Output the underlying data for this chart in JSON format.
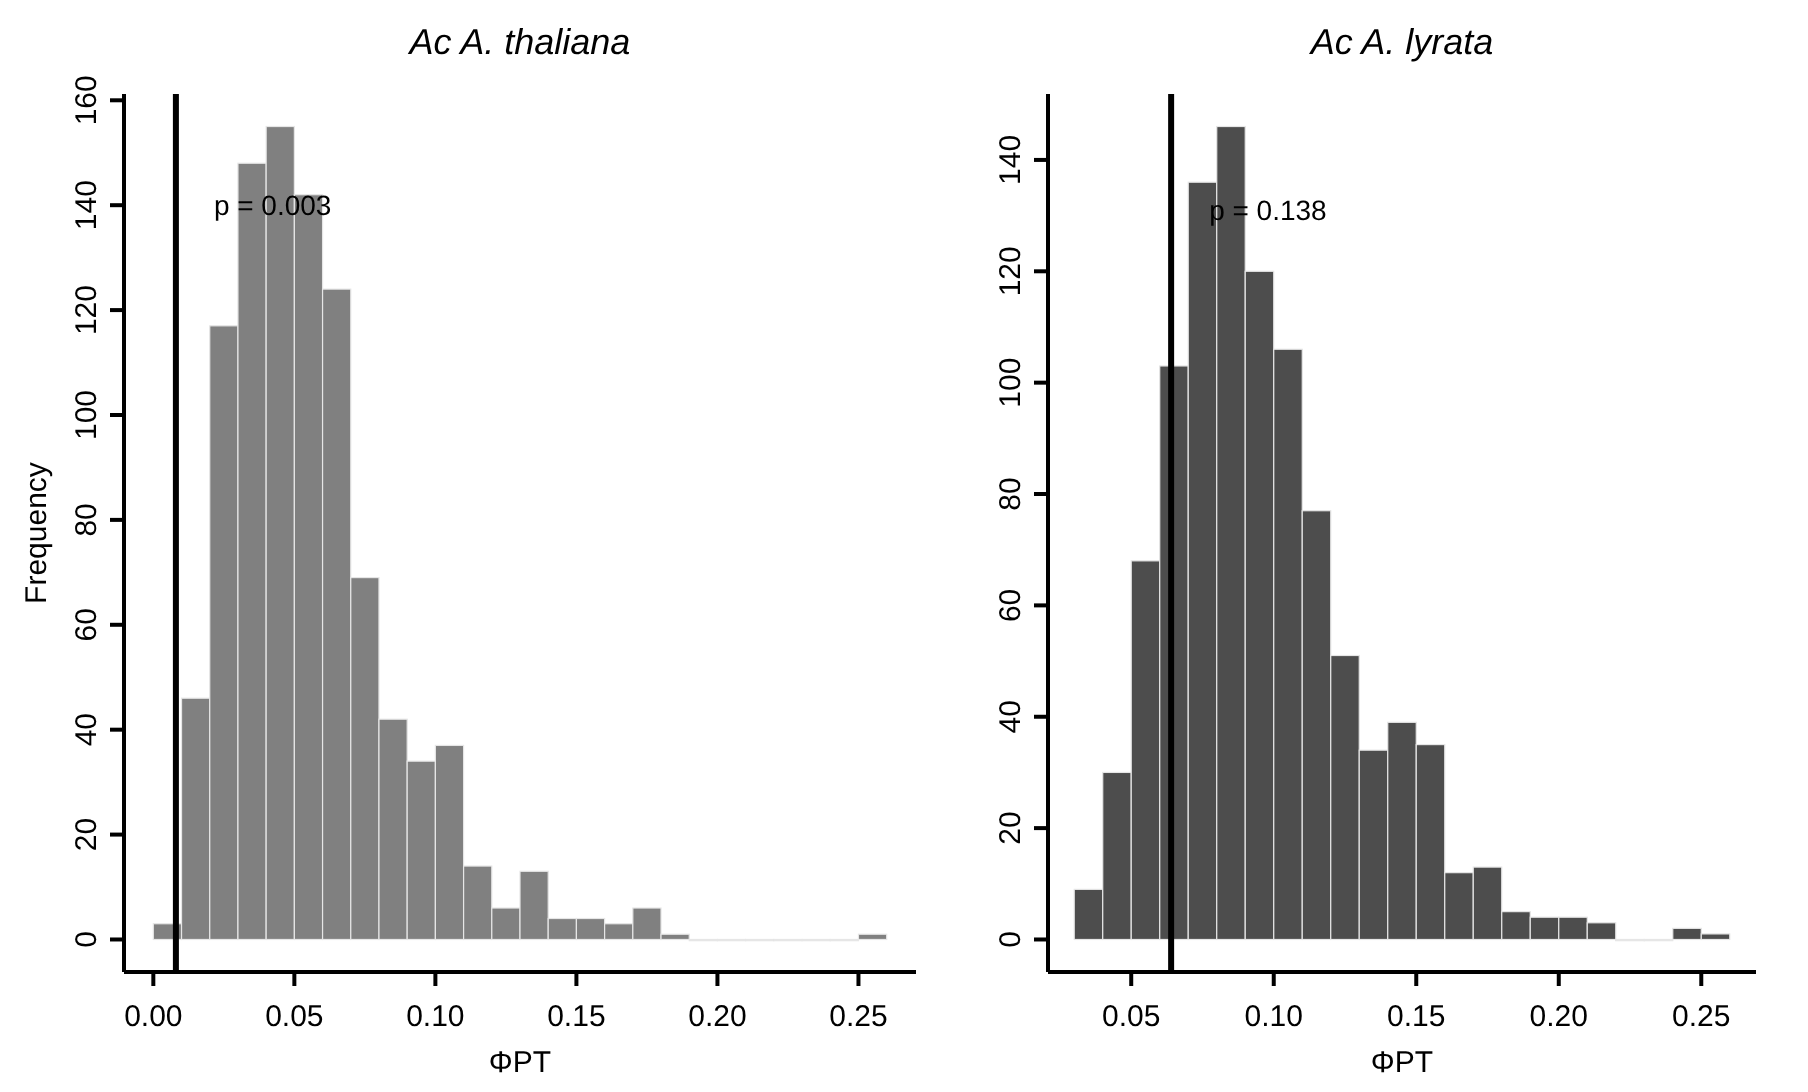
{
  "chart_data": [
    {
      "type": "histogram",
      "title": "Ac  A. thaliana",
      "xlabel": "ΦPT",
      "ylabel": "Frequency",
      "color": "#808080",
      "bins": [
        0,
        0.01,
        0.02,
        0.03,
        0.04,
        0.05,
        0.06,
        0.07,
        0.08,
        0.09,
        0.1,
        0.11,
        0.12,
        0.13,
        0.14,
        0.15,
        0.16,
        0.17,
        0.18,
        0.19,
        0.2,
        0.21,
        0.22,
        0.23,
        0.24,
        0.25,
        0.26
      ],
      "values": [
        3,
        46,
        117,
        148,
        155,
        142,
        124,
        69,
        42,
        34,
        37,
        14,
        6,
        13,
        4,
        4,
        3,
        6,
        1,
        0,
        0,
        0,
        0,
        0,
        0,
        1
      ],
      "xlim": [
        -0.0104,
        0.2704
      ],
      "ylim": [
        -6.2,
        161.2
      ],
      "xticks": [
        {
          "value": 0,
          "label": "0.00"
        },
        0.05,
        {
          "value": 0.1,
          "label": "0.10"
        },
        0.15,
        {
          "value": 0.2,
          "label": "0.20"
        },
        0.25
      ],
      "yticks": [
        0,
        20,
        40,
        60,
        80,
        100,
        120,
        140,
        160
      ],
      "ref_lines": [
        {
          "axis": "x",
          "value": 0.008,
          "color": "#000000"
        }
      ],
      "annotations": [
        {
          "text": "p = 0.003",
          "x": 0.008,
          "y": 140
        }
      ],
      "grid": false
    },
    {
      "type": "histogram",
      "title": "Ac  A. lyrata",
      "xlabel": "ΦPT",
      "color": "#4d4d4d",
      "bins": [
        0.03,
        0.04,
        0.05,
        0.06,
        0.07,
        0.08,
        0.09,
        0.1,
        0.11,
        0.12,
        0.13,
        0.14,
        0.15,
        0.16,
        0.17,
        0.18,
        0.19,
        0.2,
        0.21,
        0.22,
        0.23,
        0.24,
        0.25,
        0.26
      ],
      "values": [
        9,
        30,
        68,
        103,
        136,
        146,
        120,
        106,
        77,
        51,
        34,
        39,
        35,
        12,
        13,
        5,
        4,
        4,
        3,
        0,
        0,
        2,
        1
      ],
      "xlim": [
        0.0208,
        0.2692
      ],
      "ylim": [
        -5.84,
        151.84
      ],
      "xticks": [
        0.05,
        {
          "value": 0.1,
          "label": "0.10"
        },
        0.15,
        {
          "value": 0.2,
          "label": "0.20"
        },
        0.25
      ],
      "yticks": [
        0,
        20,
        40,
        60,
        80,
        100,
        120,
        140
      ],
      "ref_lines": [
        {
          "axis": "x",
          "value": 0.064,
          "color": "#000000"
        }
      ],
      "annotations": [
        {
          "text": "p = 0.138",
          "x": 0.064,
          "y": 131
        }
      ],
      "grid": false
    }
  ]
}
